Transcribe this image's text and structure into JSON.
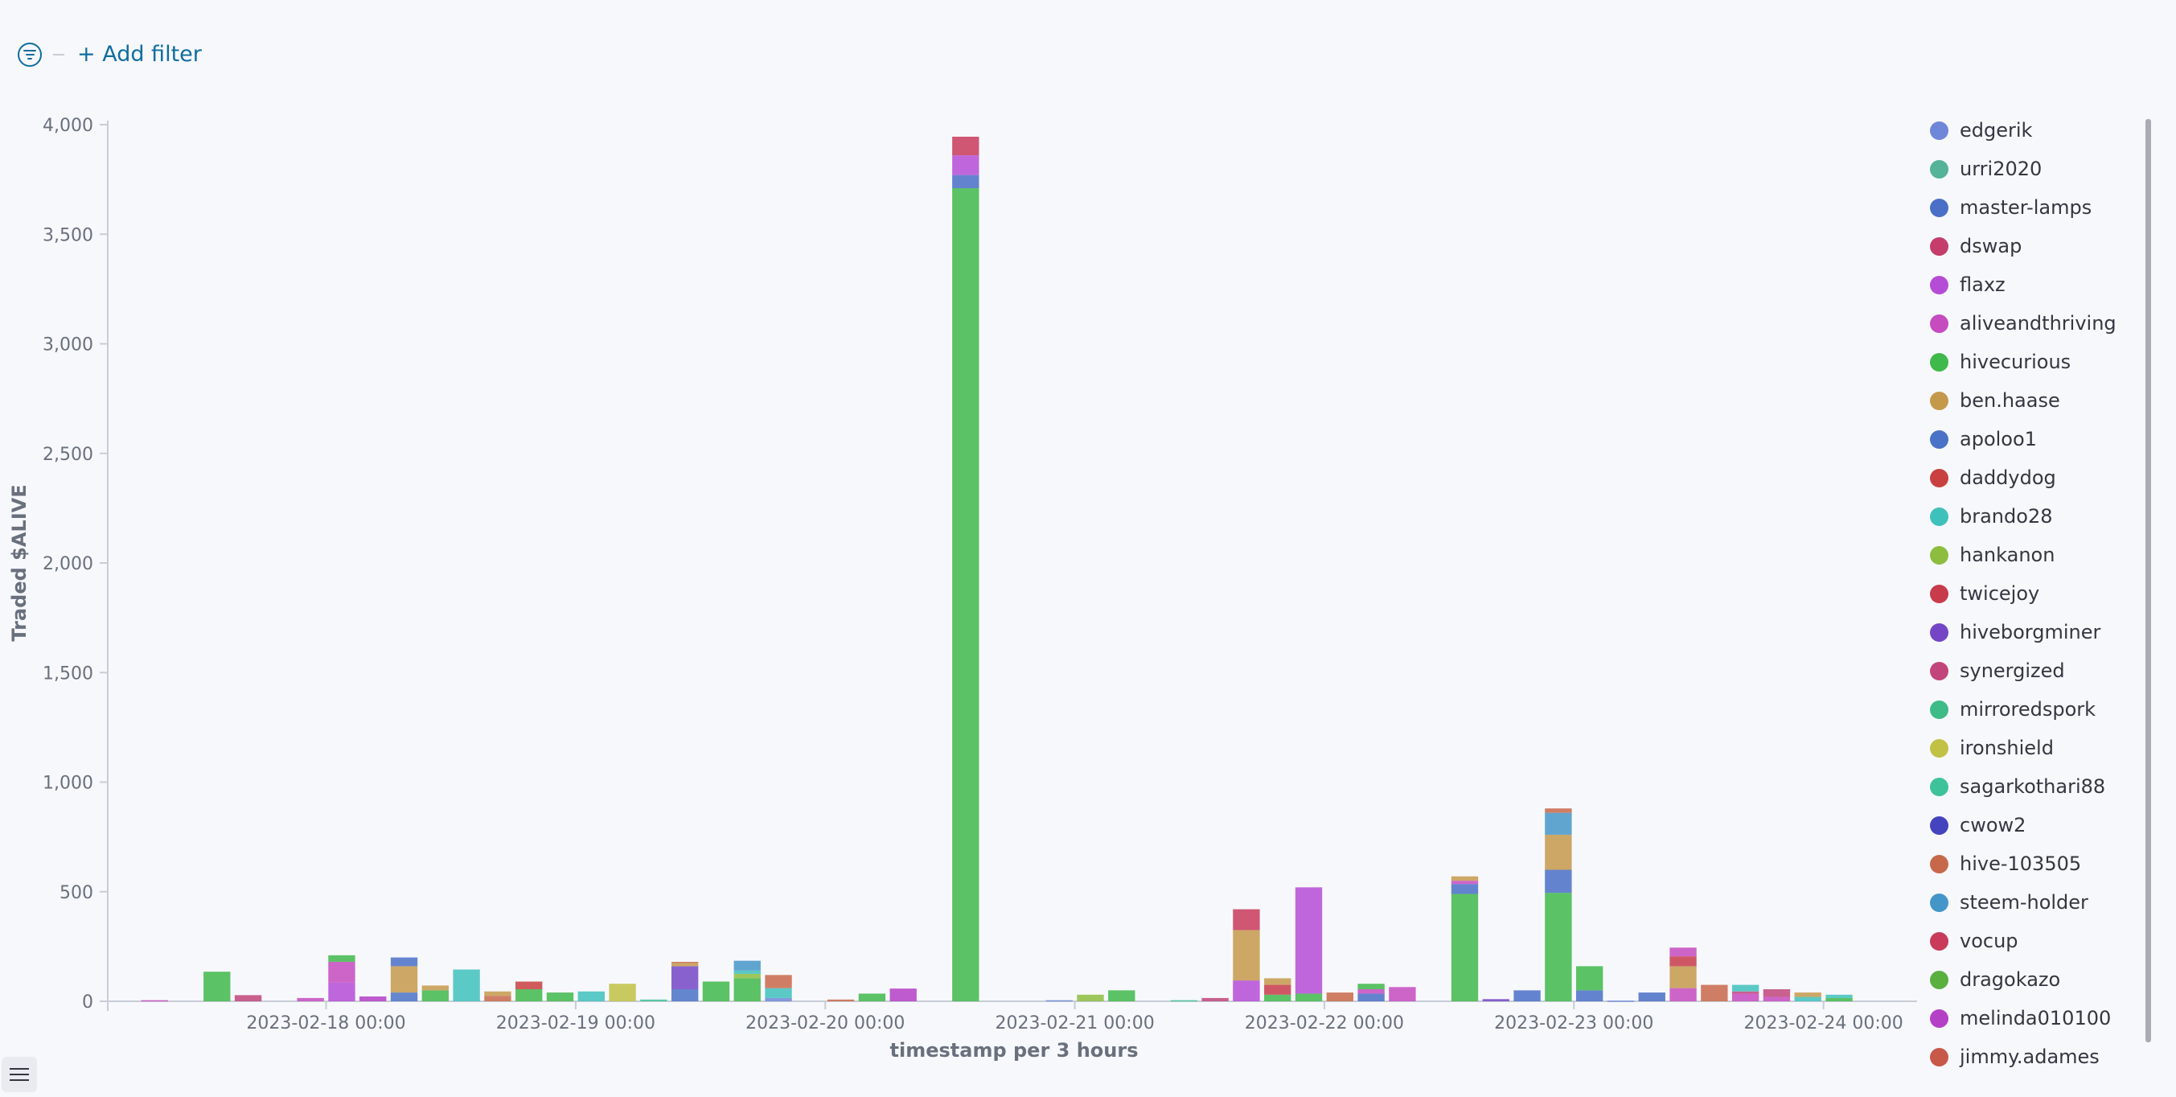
{
  "filter_bar": {
    "add_filter_label": "+ Add filter",
    "filter_icon": "filter-icon"
  },
  "legend_toggle_icon": "list-icon",
  "chart_data": {
    "type": "bar",
    "stacked": true,
    "title": "",
    "xlabel": "timestamp per 3 hours",
    "ylabel": "Traded $ALIVE",
    "ylim": [
      0,
      4000
    ],
    "yticks": [
      0,
      500,
      1000,
      1500,
      2000,
      2500,
      3000,
      3500,
      4000
    ],
    "ytick_labels": [
      "0",
      "500",
      "1,000",
      "1,500",
      "2,000",
      "2,500",
      "3,000",
      "3,500",
      "4,000"
    ],
    "xlim": [
      "2023-02-17 03:00",
      "2023-02-24 09:00"
    ],
    "xticks": [
      "2023-02-18 00:00",
      "2023-02-19 00:00",
      "2023-02-20 00:00",
      "2023-02-21 00:00",
      "2023-02-22 00:00",
      "2023-02-23 00:00",
      "2023-02-24 00:00"
    ],
    "grid": false,
    "legend_position": "right",
    "series": [
      {
        "name": "edgerik",
        "color": "#6f87d8"
      },
      {
        "name": "urri2020",
        "color": "#54b399"
      },
      {
        "name": "master-lamps",
        "color": "#4a6fc7"
      },
      {
        "name": "dswap",
        "color": "#c43d6b"
      },
      {
        "name": "flaxz",
        "color": "#b54cd6"
      },
      {
        "name": "aliveandthriving",
        "color": "#c54bbf"
      },
      {
        "name": "hivecurious",
        "color": "#3fb94a"
      },
      {
        "name": "ben.haase",
        "color": "#c5994b"
      },
      {
        "name": "apoloo1",
        "color": "#4a72c7"
      },
      {
        "name": "daddydog",
        "color": "#c8403f"
      },
      {
        "name": "brando28",
        "color": "#3fc1bb"
      },
      {
        "name": "hankanon",
        "color": "#8dbd3e"
      },
      {
        "name": "twicejoy",
        "color": "#c83b4a"
      },
      {
        "name": "hiveborgminer",
        "color": "#7446c6"
      },
      {
        "name": "synergized",
        "color": "#c1457a"
      },
      {
        "name": "mirroredspork",
        "color": "#3fbb87"
      },
      {
        "name": "ironshield",
        "color": "#c1c145"
      },
      {
        "name": "sagarkothari88",
        "color": "#3ec399"
      },
      {
        "name": "cwow2",
        "color": "#4444bf"
      },
      {
        "name": "hive-103505",
        "color": "#c8684a"
      },
      {
        "name": "steem-holder",
        "color": "#4496c8"
      },
      {
        "name": "vocup",
        "color": "#c83b5a"
      },
      {
        "name": "dragokazo",
        "color": "#5ab03f"
      },
      {
        "name": "melinda010100",
        "color": "#b440c6"
      },
      {
        "name": "jimmy.adames",
        "color": "#c8584a"
      }
    ],
    "bars": [
      {
        "t": "2023-02-17 06:00",
        "segments": [
          {
            "s": "aliveandthriving",
            "v": 5
          }
        ]
      },
      {
        "t": "2023-02-17 12:00",
        "segments": [
          {
            "s": "hivecurious",
            "v": 135
          }
        ]
      },
      {
        "t": "2023-02-17 15:00",
        "segments": [
          {
            "s": "synergized",
            "v": 28
          }
        ]
      },
      {
        "t": "2023-02-17 21:00",
        "segments": [
          {
            "s": "aliveandthriving",
            "v": 15
          }
        ]
      },
      {
        "t": "2023-02-18 00:00",
        "segments": [
          {
            "s": "flaxz",
            "v": 85
          },
          {
            "s": "aliveandthriving",
            "v": 95
          },
          {
            "s": "hivecurious",
            "v": 30
          }
        ]
      },
      {
        "t": "2023-02-18 03:00",
        "segments": [
          {
            "s": "melinda010100",
            "v": 22
          }
        ]
      },
      {
        "t": "2023-02-18 06:00",
        "segments": [
          {
            "s": "apoloo1",
            "v": 40
          },
          {
            "s": "ben.haase",
            "v": 120
          },
          {
            "s": "master-lamps",
            "v": 40
          }
        ]
      },
      {
        "t": "2023-02-18 09:00",
        "segments": [
          {
            "s": "hivecurious",
            "v": 50
          },
          {
            "s": "ben.haase",
            "v": 22
          }
        ]
      },
      {
        "t": "2023-02-18 12:00",
        "segments": [
          {
            "s": "brando28",
            "v": 145
          }
        ]
      },
      {
        "t": "2023-02-18 15:00",
        "segments": [
          {
            "s": "hive-103505",
            "v": 25
          },
          {
            "s": "ben.haase",
            "v": 20
          }
        ]
      },
      {
        "t": "2023-02-18 18:00",
        "segments": [
          {
            "s": "hivecurious",
            "v": 55
          },
          {
            "s": "daddydog",
            "v": 35
          }
        ]
      },
      {
        "t": "2023-02-18 21:00",
        "segments": [
          {
            "s": "hivecurious",
            "v": 40
          }
        ]
      },
      {
        "t": "2023-02-19 00:00",
        "segments": [
          {
            "s": "brando28",
            "v": 45
          }
        ]
      },
      {
        "t": "2023-02-19 03:00",
        "segments": [
          {
            "s": "ironshield",
            "v": 80
          }
        ]
      },
      {
        "t": "2023-02-19 06:00",
        "segments": [
          {
            "s": "sagarkothari88",
            "v": 8
          }
        ]
      },
      {
        "t": "2023-02-19 09:00",
        "segments": [
          {
            "s": "apoloo1",
            "v": 55
          },
          {
            "s": "hiveborgminer",
            "v": 105
          },
          {
            "s": "ben.haase",
            "v": 15
          },
          {
            "s": "hive-103505",
            "v": 5
          }
        ]
      },
      {
        "t": "2023-02-19 12:00",
        "segments": [
          {
            "s": "hivecurious",
            "v": 90
          }
        ]
      },
      {
        "t": "2023-02-19 15:00",
        "segments": [
          {
            "s": "hivecurious",
            "v": 105
          },
          {
            "s": "hankanon",
            "v": 20
          },
          {
            "s": "brando28",
            "v": 15
          },
          {
            "s": "steem-holder",
            "v": 45
          }
        ]
      },
      {
        "t": "2023-02-19 18:00",
        "segments": [
          {
            "s": "edgerik",
            "v": 15
          },
          {
            "s": "brando28",
            "v": 45
          },
          {
            "s": "hive-103505",
            "v": 60
          }
        ]
      },
      {
        "t": "2023-02-20 00:00",
        "segments": [
          {
            "s": "hive-103505",
            "v": 8
          }
        ]
      },
      {
        "t": "2023-02-20 03:00",
        "segments": [
          {
            "s": "hivecurious",
            "v": 35
          }
        ]
      },
      {
        "t": "2023-02-20 06:00",
        "segments": [
          {
            "s": "melinda010100",
            "v": 58
          }
        ]
      },
      {
        "t": "2023-02-20 12:00",
        "segments": [
          {
            "s": "hivecurious",
            "v": 3710
          },
          {
            "s": "master-lamps",
            "v": 60
          },
          {
            "s": "flaxz",
            "v": 90
          },
          {
            "s": "vocup",
            "v": 85
          }
        ]
      },
      {
        "t": "2023-02-20 21:00",
        "segments": [
          {
            "s": "edgerik",
            "v": 5
          }
        ]
      },
      {
        "t": "2023-02-21 00:00",
        "segments": [
          {
            "s": "hankanon",
            "v": 30
          }
        ]
      },
      {
        "t": "2023-02-21 03:00",
        "segments": [
          {
            "s": "hivecurious",
            "v": 50
          }
        ]
      },
      {
        "t": "2023-02-21 09:00",
        "segments": [
          {
            "s": "sagarkothari88",
            "v": 5
          }
        ]
      },
      {
        "t": "2023-02-21 12:00",
        "segments": [
          {
            "s": "synergized",
            "v": 15
          }
        ]
      },
      {
        "t": "2023-02-21 15:00",
        "segments": [
          {
            "s": "flaxz",
            "v": 95
          },
          {
            "s": "ben.haase",
            "v": 230
          },
          {
            "s": "vocup",
            "v": 95
          }
        ]
      },
      {
        "t": "2023-02-21 18:00",
        "segments": [
          {
            "s": "hivecurious",
            "v": 30
          },
          {
            "s": "twicejoy",
            "v": 45
          },
          {
            "s": "ben.haase",
            "v": 30
          }
        ]
      },
      {
        "t": "2023-02-21 21:00",
        "segments": [
          {
            "s": "hivecurious",
            "v": 35
          },
          {
            "s": "flaxz",
            "v": 485
          }
        ]
      },
      {
        "t": "2023-02-22 00:00",
        "segments": [
          {
            "s": "hive-103505",
            "v": 40
          }
        ]
      },
      {
        "t": "2023-02-22 03:00",
        "segments": [
          {
            "s": "master-lamps",
            "v": 35
          },
          {
            "s": "aliveandthriving",
            "v": 20
          },
          {
            "s": "hivecurious",
            "v": 25
          }
        ]
      },
      {
        "t": "2023-02-22 06:00",
        "segments": [
          {
            "s": "aliveandthriving",
            "v": 65
          }
        ]
      },
      {
        "t": "2023-02-22 12:00",
        "segments": [
          {
            "s": "hivecurious",
            "v": 490
          },
          {
            "s": "master-lamps",
            "v": 45
          },
          {
            "s": "aliveandthriving",
            "v": 15
          },
          {
            "s": "ben.haase",
            "v": 20
          }
        ]
      },
      {
        "t": "2023-02-22 15:00",
        "segments": [
          {
            "s": "hiveborgminer",
            "v": 10
          }
        ]
      },
      {
        "t": "2023-02-22 18:00",
        "segments": [
          {
            "s": "master-lamps",
            "v": 50
          }
        ]
      },
      {
        "t": "2023-02-22 21:00",
        "segments": [
          {
            "s": "hivecurious",
            "v": 495
          },
          {
            "s": "master-lamps",
            "v": 105
          },
          {
            "s": "ben.haase",
            "v": 160
          },
          {
            "s": "steem-holder",
            "v": 100
          },
          {
            "s": "hive-103505",
            "v": 20
          }
        ]
      },
      {
        "t": "2023-02-23 00:00",
        "segments": [
          {
            "s": "master-lamps",
            "v": 50
          },
          {
            "s": "hivecurious",
            "v": 110
          }
        ]
      },
      {
        "t": "2023-02-23 03:00",
        "segments": [
          {
            "s": "edgerik",
            "v": 3
          }
        ]
      },
      {
        "t": "2023-02-23 06:00",
        "segments": [
          {
            "s": "master-lamps",
            "v": 40
          }
        ]
      },
      {
        "t": "2023-02-23 09:00",
        "segments": [
          {
            "s": "aliveandthriving",
            "v": 60
          },
          {
            "s": "ben.haase",
            "v": 100
          },
          {
            "s": "twicejoy",
            "v": 45
          },
          {
            "s": "aliveandthriving",
            "v": 40
          }
        ]
      },
      {
        "t": "2023-02-23 12:00",
        "segments": [
          {
            "s": "hive-103505",
            "v": 75
          }
        ]
      },
      {
        "t": "2023-02-23 15:00",
        "segments": [
          {
            "s": "aliveandthriving",
            "v": 35
          },
          {
            "s": "synergized",
            "v": 10
          },
          {
            "s": "brando28",
            "v": 30
          }
        ]
      },
      {
        "t": "2023-02-23 18:00",
        "segments": [
          {
            "s": "aliveandthriving",
            "v": 20
          },
          {
            "s": "synergized",
            "v": 35
          }
        ]
      },
      {
        "t": "2023-02-23 21:00",
        "segments": [
          {
            "s": "brando28",
            "v": 20
          },
          {
            "s": "ben.haase",
            "v": 20
          }
        ]
      },
      {
        "t": "2023-02-24 00:00",
        "segments": [
          {
            "s": "hivecurious",
            "v": 15
          },
          {
            "s": "brando28",
            "v": 15
          }
        ]
      }
    ]
  }
}
